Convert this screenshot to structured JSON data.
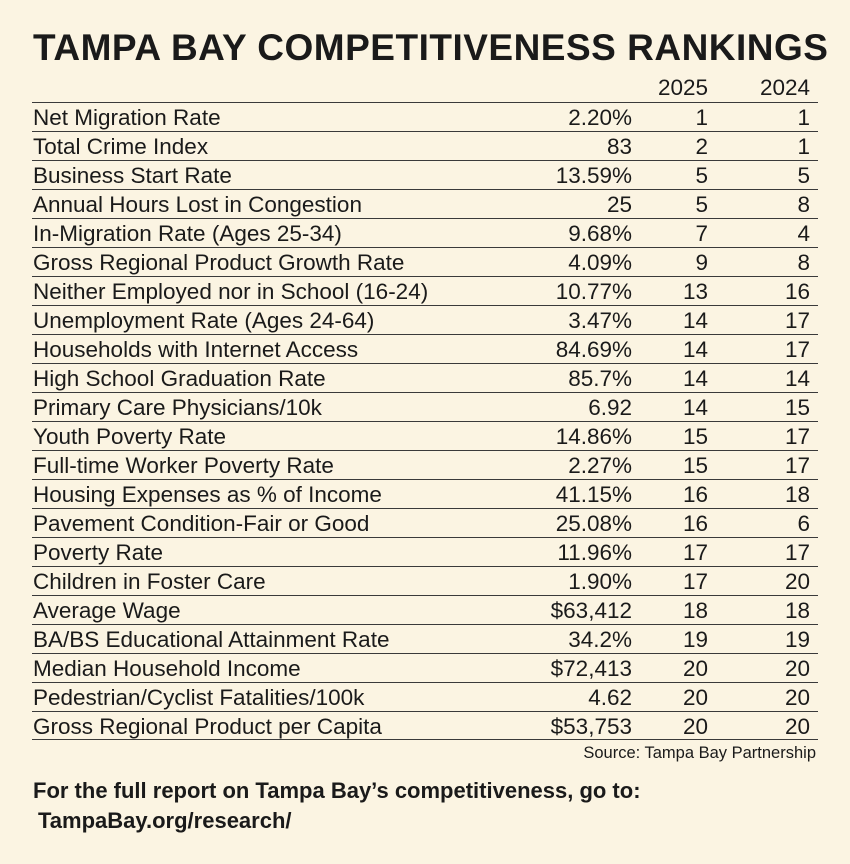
{
  "title": "TAMPA BAY COMPETITIVENESS RANKINGS",
  "columns": {
    "year_2025": "2025",
    "year_2024": "2024"
  },
  "rows": [
    {
      "label": "Net Migration Rate",
      "value": "2.20%",
      "rank_2025": "1",
      "rank_2024": "1"
    },
    {
      "label": "Total Crime Index",
      "value": "83",
      "rank_2025": "2",
      "rank_2024": "1"
    },
    {
      "label": "Business Start Rate",
      "value": "13.59%",
      "rank_2025": "5",
      "rank_2024": "5"
    },
    {
      "label": "Annual Hours Lost in Congestion",
      "value": "25",
      "rank_2025": "5",
      "rank_2024": "8"
    },
    {
      "label": "In-Migration Rate (Ages 25-34)",
      "value": "9.68%",
      "rank_2025": "7",
      "rank_2024": "4"
    },
    {
      "label": "Gross Regional Product Growth Rate",
      "value": "4.09%",
      "rank_2025": "9",
      "rank_2024": "8"
    },
    {
      "label": "Neither Employed nor in School (16-24)",
      "value": "10.77%",
      "rank_2025": "13",
      "rank_2024": "16"
    },
    {
      "label": "Unemployment Rate (Ages 24-64)",
      "value": "3.47%",
      "rank_2025": "14",
      "rank_2024": "17"
    },
    {
      "label": "Households with Internet Access",
      "value": "84.69%",
      "rank_2025": "14",
      "rank_2024": "17"
    },
    {
      "label": "High School Graduation Rate",
      "value": "85.7%",
      "rank_2025": "14",
      "rank_2024": "14"
    },
    {
      "label": "Primary Care Physicians/10k",
      "value": "6.92",
      "rank_2025": "14",
      "rank_2024": "15"
    },
    {
      "label": "Youth Poverty Rate",
      "value": "14.86%",
      "rank_2025": "15",
      "rank_2024": "17"
    },
    {
      "label": "Full-time Worker Poverty Rate",
      "value": "2.27%",
      "rank_2025": "15",
      "rank_2024": "17"
    },
    {
      "label": "Housing Expenses as % of Income",
      "value": "41.15%",
      "rank_2025": "16",
      "rank_2024": "18"
    },
    {
      "label": "Pavement Condition-Fair or Good",
      "value": "25.08%",
      "rank_2025": "16",
      "rank_2024": "6"
    },
    {
      "label": "Poverty Rate",
      "value": "11.96%",
      "rank_2025": "17",
      "rank_2024": "17"
    },
    {
      "label": "Children in Foster Care",
      "value": "1.90%",
      "rank_2025": "17",
      "rank_2024": "20"
    },
    {
      "label": "Average Wage",
      "value": "$63,412",
      "rank_2025": "18",
      "rank_2024": "18"
    },
    {
      "label": "BA/BS Educational Attainment Rate",
      "value": "34.2%",
      "rank_2025": "19",
      "rank_2024": "19"
    },
    {
      "label": "Median Household Income",
      "value": "$72,413",
      "rank_2025": "20",
      "rank_2024": "20"
    },
    {
      "label": "Pedestrian/Cyclist Fatalities/100k",
      "value": "4.62",
      "rank_2025": "20",
      "rank_2024": "20"
    },
    {
      "label": "Gross Regional Product per Capita",
      "value": "$53,753",
      "rank_2025": "20",
      "rank_2024": "20"
    }
  ],
  "source": "Source: Tampa Bay Partnership",
  "footer": {
    "text": "For the full report on Tampa Bay’s competitiveness, go to:",
    "url": "TampaBay.org/research/"
  }
}
